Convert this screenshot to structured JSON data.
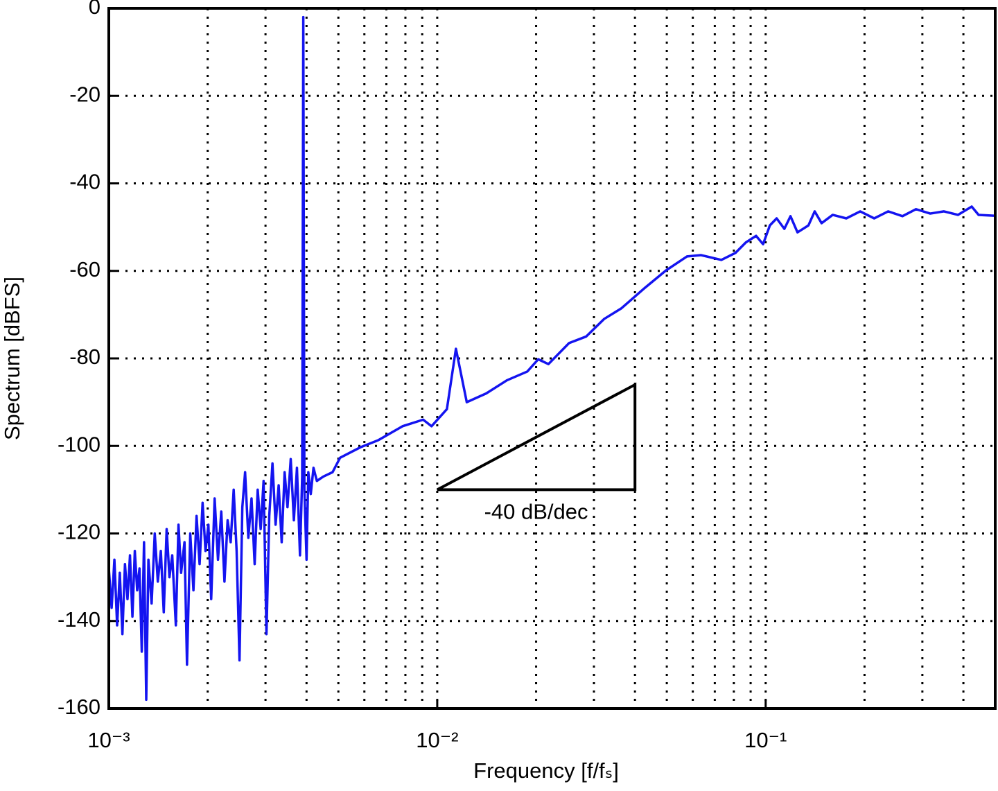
{
  "chart_data": {
    "type": "line",
    "xlabel": "Frequency [f/fₛ]",
    "ylabel": "Spectrum [dBFS]",
    "xscale": "log",
    "xlim": [
      0.001,
      0.5
    ],
    "ylim": [
      -160,
      0
    ],
    "xticks": [
      {
        "value": 0.001,
        "label": "10⁻³"
      },
      {
        "value": 0.01,
        "label": "10⁻²"
      },
      {
        "value": 0.1,
        "label": "10⁻¹"
      }
    ],
    "xminor": [
      0.002,
      0.003,
      0.004,
      0.005,
      0.006,
      0.007,
      0.008,
      0.009,
      0.02,
      0.03,
      0.04,
      0.05,
      0.06,
      0.07,
      0.08,
      0.09,
      0.2,
      0.3,
      0.4
    ],
    "yticks": [
      0,
      -20,
      -40,
      -60,
      -80,
      -100,
      -120,
      -140,
      -160
    ],
    "grid": true,
    "x": [
      0.001,
      0.00102,
      0.00104,
      0.00106,
      0.00108,
      0.0011,
      0.00112,
      0.00114,
      0.00116,
      0.00118,
      0.0012,
      0.00122,
      0.00124,
      0.00126,
      0.00128,
      0.0013,
      0.00132,
      0.00135,
      0.00138,
      0.00141,
      0.00144,
      0.00147,
      0.0015,
      0.00153,
      0.00156,
      0.0016,
      0.00163,
      0.00166,
      0.0017,
      0.00173,
      0.00177,
      0.00181,
      0.00185,
      0.00189,
      0.00193,
      0.00197,
      0.00201,
      0.00205,
      0.0021,
      0.00215,
      0.0022,
      0.00225,
      0.0023,
      0.00235,
      0.0024,
      0.00245,
      0.0025,
      0.00255,
      0.0026,
      0.00266,
      0.00272,
      0.00278,
      0.00284,
      0.0029,
      0.00296,
      0.00302,
      0.00308,
      0.00315,
      0.00322,
      0.00329,
      0.00336,
      0.00343,
      0.0035,
      0.00358,
      0.00366,
      0.00374,
      0.00382,
      0.00388,
      0.00391,
      0.00394,
      0.004,
      0.00405,
      0.00412,
      0.0042,
      0.0043,
      0.0045,
      0.0048,
      0.00506,
      0.00584,
      0.00661,
      0.00784,
      0.00906,
      0.00961,
      0.0107,
      0.0114,
      0.0123,
      0.0141,
      0.0163,
      0.0188,
      0.0203,
      0.0218,
      0.0252,
      0.0284,
      0.0322,
      0.0363,
      0.043,
      0.0497,
      0.0576,
      0.0636,
      0.0733,
      0.0809,
      0.087,
      0.0935,
      0.0982,
      0.103,
      0.108,
      0.114,
      0.119,
      0.125,
      0.135,
      0.141,
      0.148,
      0.16,
      0.176,
      0.194,
      0.214,
      0.236,
      0.261,
      0.287,
      0.317,
      0.349,
      0.385,
      0.424,
      0.445,
      0.5
    ],
    "series": [
      {
        "color": "#1414f0",
        "values": [
          -128,
          -137,
          -126,
          -141,
          -129,
          -143,
          -127,
          -135,
          -125,
          -139,
          -124,
          -133,
          -128,
          -147,
          -122,
          -158,
          -126,
          -136,
          -120,
          -131,
          -124,
          -138,
          -119,
          -130,
          -125,
          -141,
          -118,
          -129,
          -122,
          -150,
          -120,
          -133,
          -116,
          -127,
          -113,
          -124,
          -118,
          -135,
          -112,
          -126,
          -115,
          -131,
          -117,
          -122,
          -110,
          -124,
          -149,
          -114,
          -106,
          -121,
          -112,
          -127,
          -110,
          -119,
          -108,
          -143,
          -116,
          -104,
          -118,
          -109,
          -122,
          -106,
          -114,
          -103,
          -117,
          -105,
          -125,
          -107,
          -2,
          -110,
          -126,
          -106,
          -111,
          -105,
          -108,
          -107,
          -106,
          -102.7,
          -100.3,
          -98.7,
          -95.5,
          -94,
          -95.5,
          -91.6,
          -77.8,
          -90,
          -88,
          -85,
          -83,
          -80.2,
          -81.3,
          -76.5,
          -75,
          -71,
          -68.6,
          -63.8,
          -59.9,
          -56.7,
          -56.4,
          -57.5,
          -55.9,
          -53.5,
          -52,
          -53.9,
          -49.6,
          -48,
          -50.4,
          -47.5,
          -51.2,
          -49.6,
          -46.4,
          -49.1,
          -47.2,
          -48,
          -46.4,
          -48,
          -46.4,
          -47.5,
          -45.9,
          -46.9,
          -46.4,
          -47.2,
          -45.3,
          -47.2,
          -47.4
        ]
      }
    ],
    "annotation": {
      "text": "-40 dB/dec",
      "x": [
        0.01,
        0.04,
        0.04
      ],
      "y": [
        -110,
        -110,
        -86
      ]
    }
  }
}
